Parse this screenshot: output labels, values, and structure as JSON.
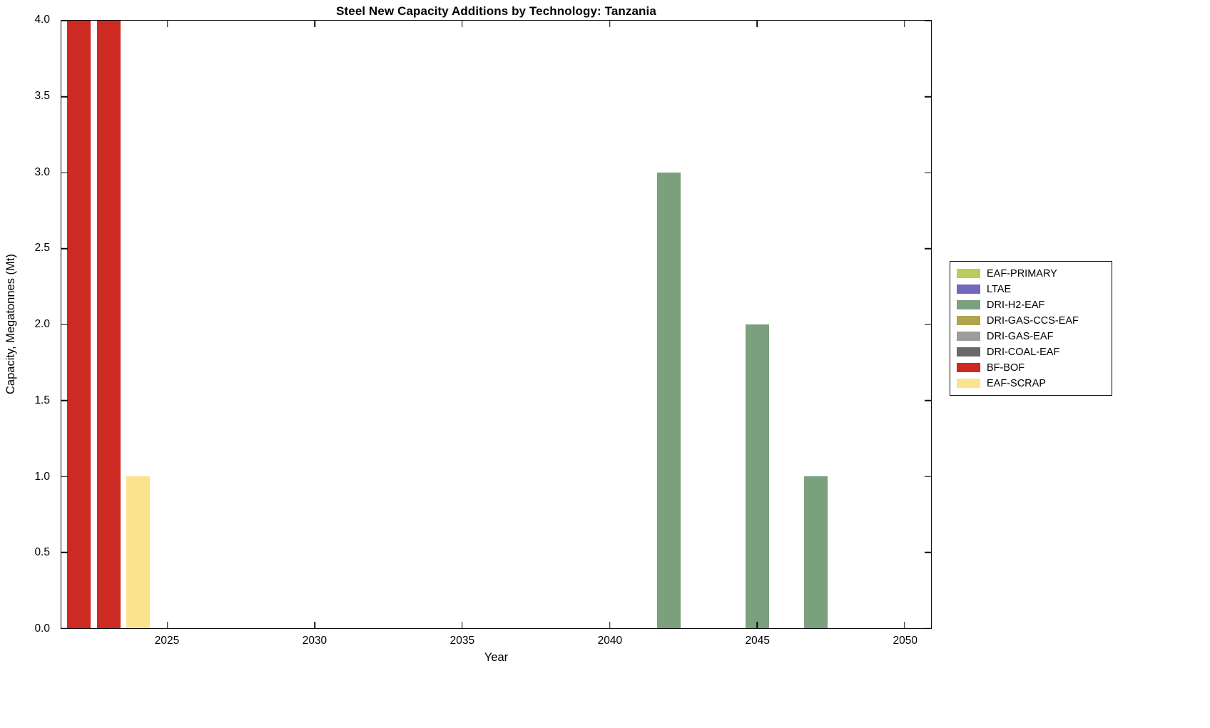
{
  "chart_data": {
    "type": "bar",
    "title": "Steel New Capacity Additions by Technology: Tanzania",
    "xlabel": "Year",
    "ylabel": "Capacity, Megatonnes (Mt)",
    "xlim": [
      2021.4,
      2050.9
    ],
    "ylim": [
      0,
      4
    ],
    "xticks": [
      2025,
      2030,
      2035,
      2040,
      2045,
      2050
    ],
    "xtick_labels": [
      "2025",
      "2030",
      "2035",
      "2040",
      "2045",
      "2050"
    ],
    "yticks": [
      0,
      0.5,
      1,
      1.5,
      2,
      2.5,
      3,
      3.5,
      4
    ],
    "ytick_labels": [
      "0.0",
      "0.5",
      "1.0",
      "1.5",
      "2.0",
      "2.5",
      "3.0",
      "3.5",
      "4.0"
    ],
    "grid": false,
    "legend_position": "right-outside",
    "bar_width_years": 0.8,
    "background_color": "#ffffff",
    "axis_color": "#0b0b0b",
    "series": [
      {
        "name": "EAF-PRIMARY",
        "color": "#b9cc5c",
        "points": []
      },
      {
        "name": "LTAE",
        "color": "#7467bf",
        "points": []
      },
      {
        "name": "DRI-H2-EAF",
        "color": "#7ba07d",
        "points": [
          {
            "x": 2042,
            "y": 3
          },
          {
            "x": 2045,
            "y": 2
          },
          {
            "x": 2047,
            "y": 1
          }
        ]
      },
      {
        "name": "DRI-GAS-CCS-EAF",
        "color": "#b0a44c",
        "points": []
      },
      {
        "name": "DRI-GAS-EAF",
        "color": "#9c9c9c",
        "points": []
      },
      {
        "name": "DRI-COAL-EAF",
        "color": "#696969",
        "points": []
      },
      {
        "name": "BF-BOF",
        "color": "#cc2a22",
        "points": [
          {
            "x": 2022,
            "y": 4
          },
          {
            "x": 2023,
            "y": 4
          }
        ]
      },
      {
        "name": "EAF-SCRAP",
        "color": "#fbe38e",
        "points": [
          {
            "x": 2024,
            "y": 1
          }
        ]
      }
    ]
  }
}
